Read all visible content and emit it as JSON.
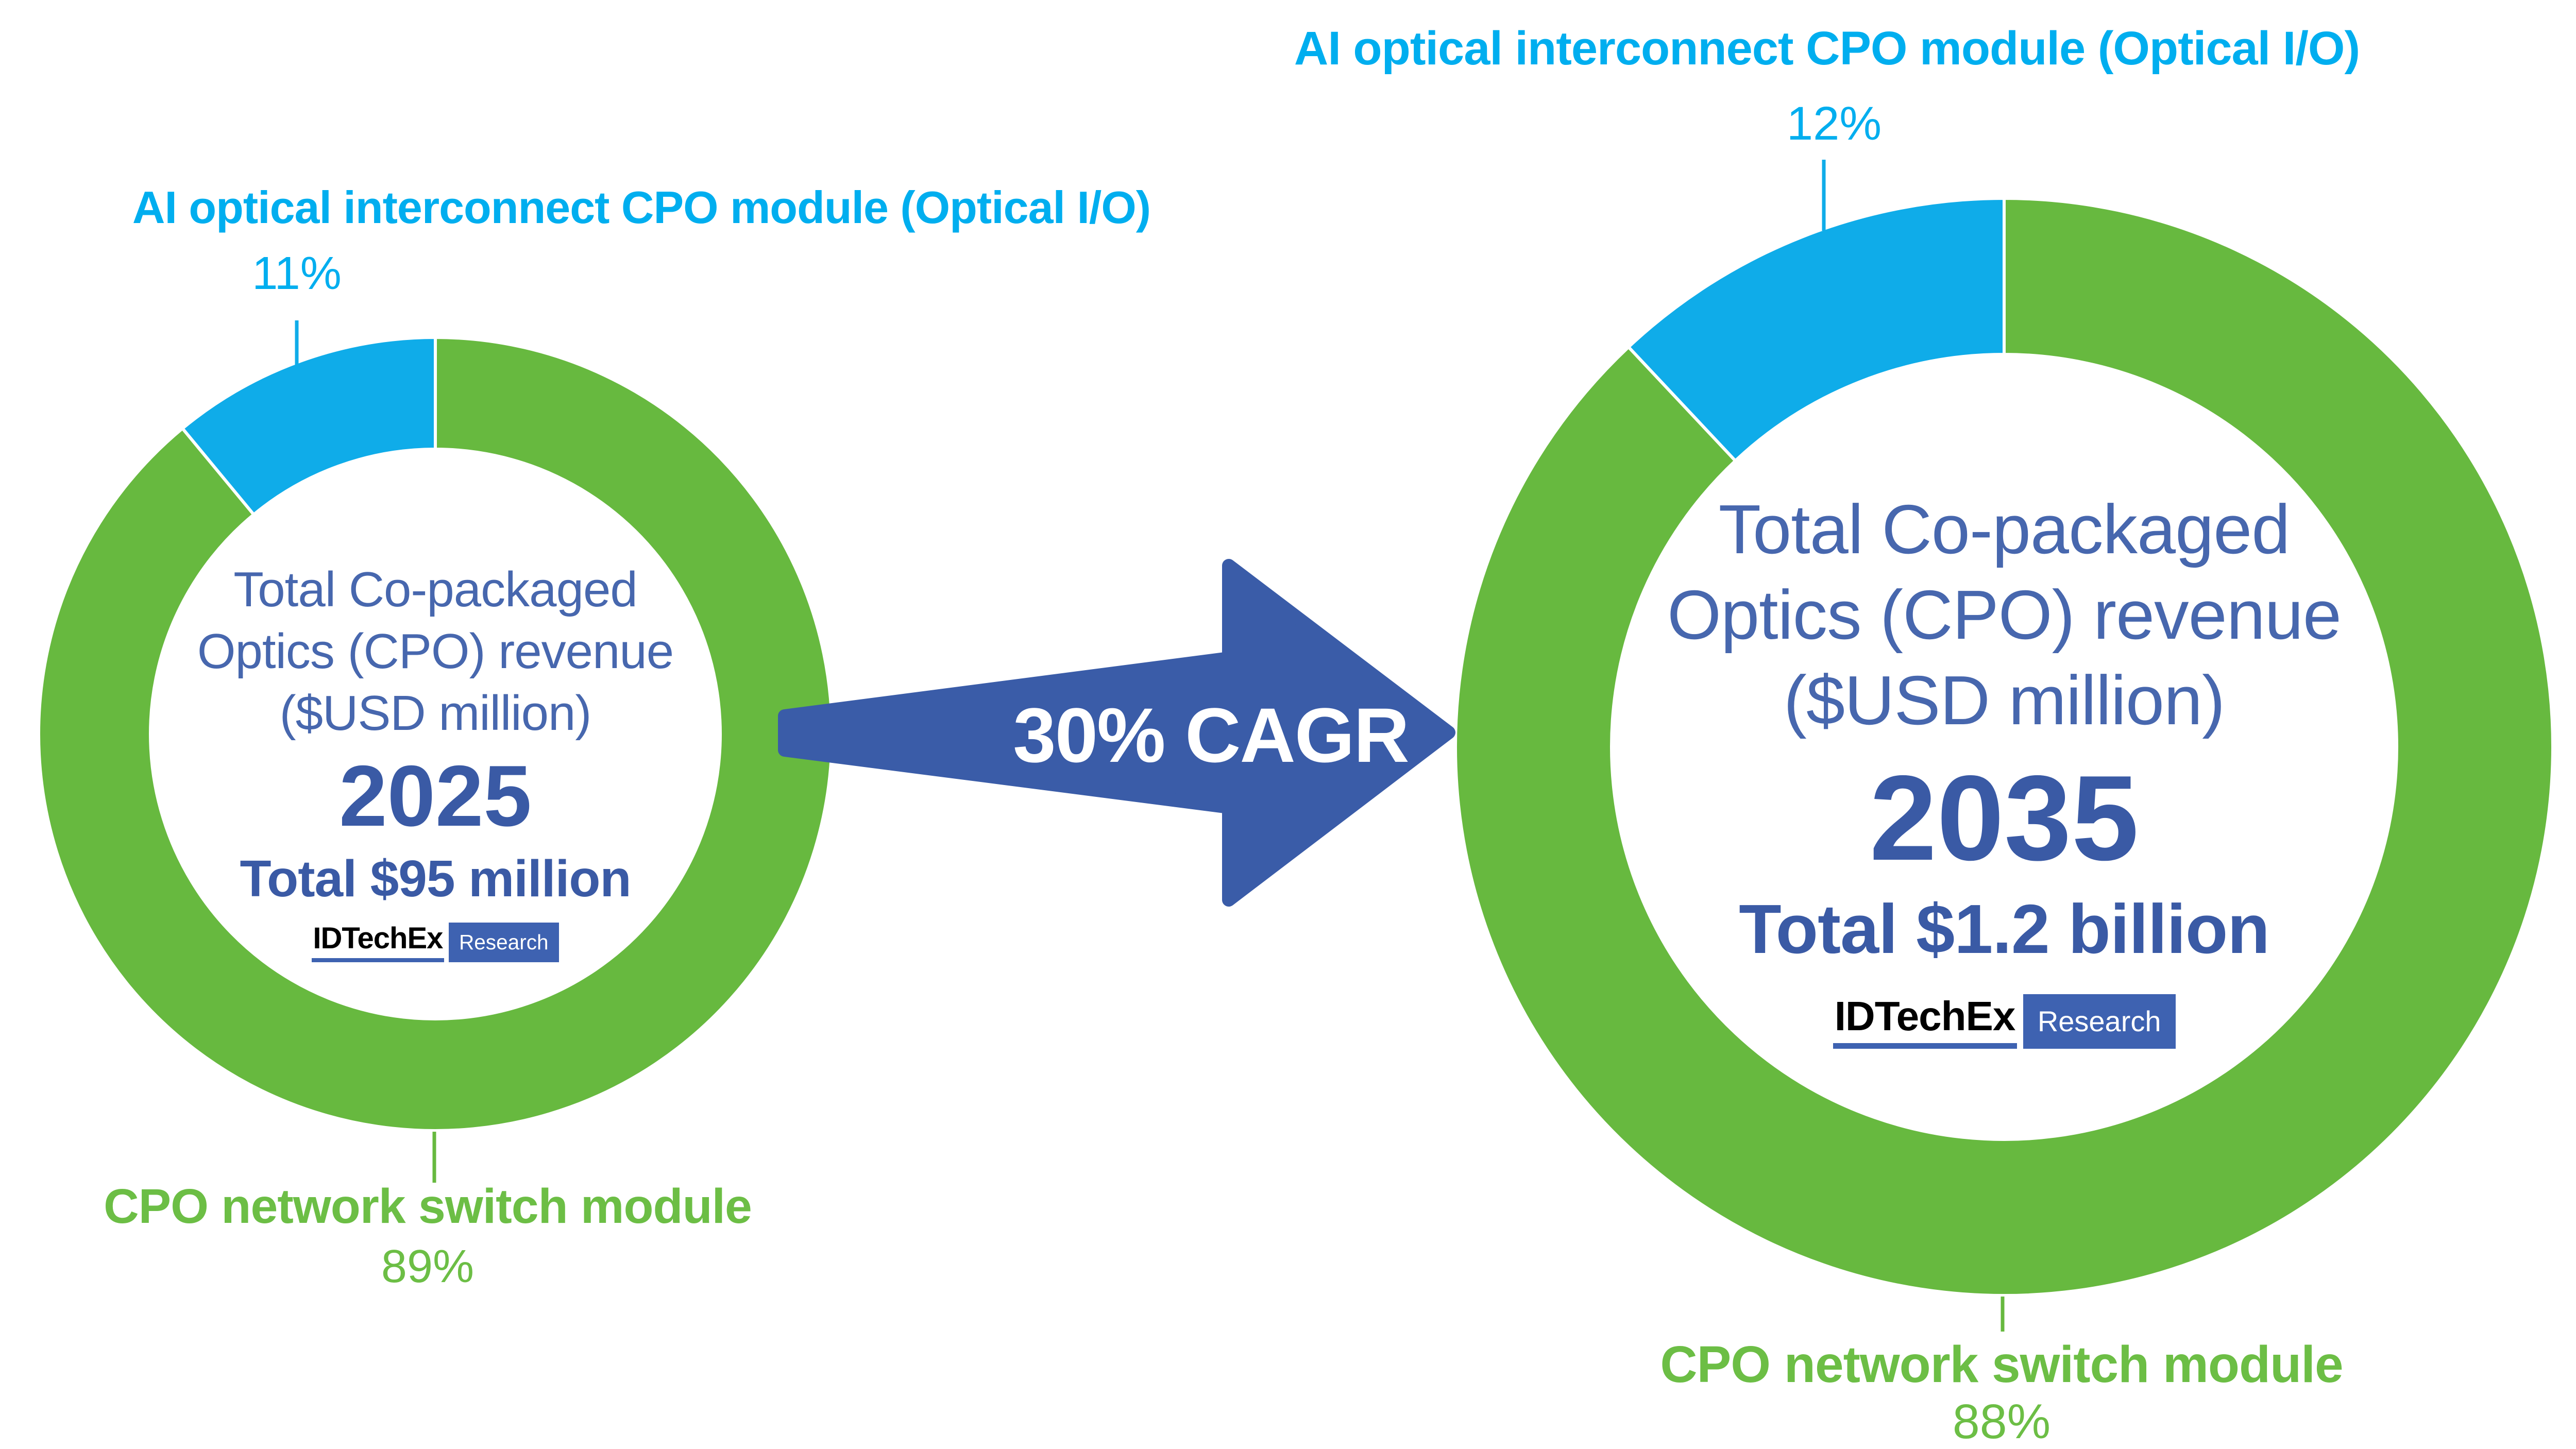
{
  "colors": {
    "green_segment": "#67B93F",
    "green_text": "#6CBE45",
    "cyan_segment": "#0FACE9",
    "cyan_text": "#00AEEF",
    "arrow_blue": "#3A5CA8",
    "title_blue": "#4767AE",
    "dark_blue": "#3A5AA5",
    "logo_blue": "#3E62B1"
  },
  "arrow": {
    "label": "30% CAGR"
  },
  "branding": {
    "name": "IDTechEx",
    "suffix": "Research"
  },
  "chart_data": [
    {
      "type": "pie",
      "subtype": "donut",
      "title": "Total Co-packaged Optics (CPO) revenue ($USD million) 2025",
      "center_title_lines": [
        "Total Co-packaged",
        "Optics (CPO) revenue",
        "($USD million)"
      ],
      "year": "2025",
      "total_label": "Total $95 million",
      "legend_position": "callouts",
      "slices": [
        {
          "label": "CPO network switch module",
          "value": 89,
          "pct_label": "89%",
          "color_key": "green_segment"
        },
        {
          "label": "AI optical interconnect CPO module (Optical I/O)",
          "value": 11,
          "pct_label": "11%",
          "color_key": "cyan_segment"
        }
      ]
    },
    {
      "type": "pie",
      "subtype": "donut",
      "title": "Total Co-packaged Optics (CPO) revenue ($USD million) 2035",
      "center_title_lines": [
        "Total Co-packaged",
        "Optics (CPO) revenue",
        "($USD million)"
      ],
      "year": "2035",
      "total_label": "Total $1.2 billion",
      "legend_position": "callouts",
      "slices": [
        {
          "label": "CPO network switch module",
          "value": 88,
          "pct_label": "88%",
          "color_key": "green_segment"
        },
        {
          "label": "AI optical interconnect CPO module (Optical I/O)",
          "value": 12,
          "pct_label": "12%",
          "color_key": "cyan_segment"
        }
      ]
    }
  ]
}
